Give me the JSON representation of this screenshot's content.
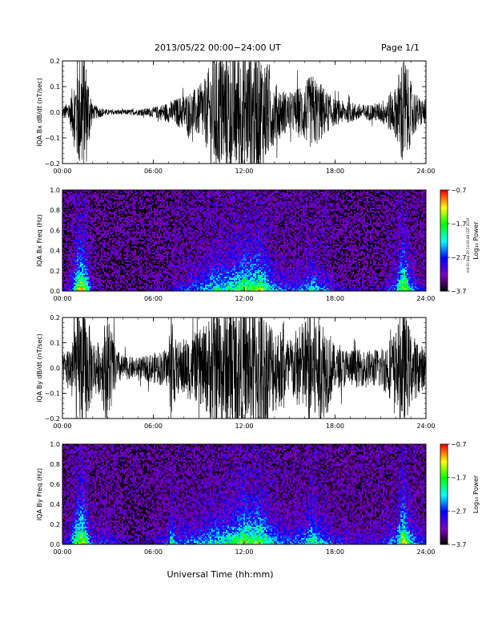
{
  "header": {
    "title": "2013/05/22  00:00−24:00 UT",
    "page": "Page 1/1"
  },
  "side_note": "mit Fri Sep 20 13:03:48 CDT 2019",
  "xlabel": "Universal Time (hh:mm)",
  "colorbar": {
    "label": "Log₁₀ Power",
    "ticks": [
      -0.7,
      -1.7,
      -2.7,
      -3.7
    ],
    "tick_labels": [
      "−0.7",
      "−1.7",
      "−2.7",
      "−3.7"
    ],
    "colors": [
      "#ff0000",
      "#ffff00",
      "#00ff00",
      "#00ffff",
      "#0000ff",
      "#8000c0",
      "#000000"
    ]
  },
  "chart_data": [
    {
      "type": "line",
      "ylabel": "IQA Bx dB/dt (nT/sec)",
      "xlim": [
        0,
        24
      ],
      "ylim": [
        -0.2,
        0.2
      ],
      "x_ticks": [
        "00:00",
        "06:00",
        "12:00",
        "18:00",
        "24:00"
      ],
      "y_ticks": [
        "0.2",
        "0.1",
        "0.0",
        "−0.1",
        "−0.2"
      ],
      "envelope": {
        "t": [
          0,
          0.5,
          1,
          1.3,
          1.6,
          2,
          3,
          4,
          5,
          6,
          7,
          8,
          9,
          9.5,
          10,
          10.5,
          11,
          11.5,
          12,
          12.5,
          13,
          13.5,
          14,
          15,
          16,
          16.5,
          17,
          17.5,
          18,
          19,
          20,
          21,
          22,
          22.5,
          23,
          23.5,
          24
        ],
        "amp": [
          0.02,
          0.05,
          0.22,
          0.25,
          0.2,
          0.03,
          0.01,
          0.01,
          0.012,
          0.02,
          0.04,
          0.07,
          0.1,
          0.14,
          0.25,
          0.25,
          0.25,
          0.25,
          0.25,
          0.25,
          0.25,
          0.2,
          0.12,
          0.07,
          0.12,
          0.15,
          0.12,
          0.08,
          0.05,
          0.04,
          0.03,
          0.04,
          0.1,
          0.25,
          0.12,
          0.06,
          0.05
        ]
      }
    },
    {
      "type": "heatmap",
      "ylabel": "IQA Bx Freq (Hz)",
      "xlim": [
        0,
        24
      ],
      "ylim": [
        0,
        1.0
      ],
      "x_ticks": [
        "00:00",
        "06:00",
        "12:00",
        "18:00",
        "24:00"
      ],
      "y_ticks": [
        "1.0",
        "0.8",
        "0.6",
        "0.4",
        "0.2",
        "0.0"
      ],
      "zlim": [
        -3.7,
        -0.7
      ],
      "activity": {
        "t": [
          0,
          0.5,
          1,
          1.3,
          1.6,
          2,
          3,
          4,
          5,
          6,
          7,
          8,
          9,
          9.5,
          10,
          10.5,
          11,
          11.5,
          12,
          12.5,
          13,
          13.5,
          14,
          15,
          16,
          16.5,
          17,
          17.5,
          18,
          19,
          20,
          21,
          22,
          22.5,
          23,
          23.5,
          24
        ],
        "level": [
          0.1,
          0.25,
          0.85,
          0.95,
          0.7,
          0.15,
          0.05,
          0.05,
          0.05,
          0.1,
          0.15,
          0.3,
          0.4,
          0.5,
          0.6,
          0.6,
          0.65,
          0.7,
          0.8,
          0.75,
          0.85,
          0.65,
          0.45,
          0.3,
          0.4,
          0.55,
          0.45,
          0.35,
          0.2,
          0.15,
          0.12,
          0.15,
          0.4,
          0.95,
          0.5,
          0.25,
          0.2
        ]
      }
    },
    {
      "type": "line",
      "ylabel": "IQA By dB/dt (nT/sec)",
      "xlim": [
        0,
        24
      ],
      "ylim": [
        -0.2,
        0.2
      ],
      "x_ticks": [
        "00:00",
        "06:00",
        "12:00",
        "18:00",
        "24:00"
      ],
      "y_ticks": [
        "0.2",
        "0.1",
        "0.0",
        "−0.1",
        "−0.2"
      ],
      "envelope": {
        "t": [
          0,
          0.5,
          1,
          1.3,
          1.6,
          2,
          2.5,
          3,
          3.5,
          4,
          5,
          6,
          7,
          7.2,
          7.5,
          8,
          9,
          9.5,
          10,
          10.5,
          11,
          11.5,
          12,
          12.5,
          13,
          13.5,
          14,
          15,
          16,
          16.5,
          17,
          17.5,
          18,
          19,
          20,
          21,
          22,
          22.5,
          23,
          23.5,
          24
        ],
        "amp": [
          0.05,
          0.1,
          0.25,
          0.25,
          0.22,
          0.12,
          0.1,
          0.25,
          0.08,
          0.05,
          0.04,
          0.06,
          0.08,
          0.25,
          0.1,
          0.12,
          0.14,
          0.18,
          0.25,
          0.25,
          0.25,
          0.25,
          0.25,
          0.25,
          0.25,
          0.22,
          0.18,
          0.12,
          0.2,
          0.25,
          0.22,
          0.18,
          0.08,
          0.08,
          0.07,
          0.08,
          0.15,
          0.25,
          0.15,
          0.1,
          0.08
        ]
      }
    },
    {
      "type": "heatmap",
      "ylabel": "IQA By Freq (Hz)",
      "xlim": [
        0,
        24
      ],
      "ylim": [
        0,
        1.0
      ],
      "x_ticks": [
        "00:00",
        "06:00",
        "12:00",
        "18:00",
        "24:00"
      ],
      "y_ticks": [
        "1.0",
        "0.8",
        "0.6",
        "0.4",
        "0.2",
        "0.0"
      ],
      "zlim": [
        -3.7,
        -0.7
      ],
      "activity": {
        "t": [
          0,
          0.5,
          1,
          1.3,
          1.6,
          2,
          3,
          4,
          5,
          6,
          7,
          7.2,
          7.5,
          8,
          9,
          9.5,
          10,
          10.5,
          11,
          11.5,
          12,
          12.5,
          13,
          13.5,
          14,
          15,
          16,
          16.5,
          17,
          17.5,
          18,
          19,
          20,
          21,
          22,
          22.5,
          23,
          23.5,
          24
        ],
        "level": [
          0.2,
          0.35,
          0.85,
          0.95,
          0.7,
          0.25,
          0.3,
          0.15,
          0.15,
          0.2,
          0.3,
          0.7,
          0.35,
          0.4,
          0.45,
          0.5,
          0.6,
          0.6,
          0.65,
          0.7,
          0.85,
          0.75,
          0.85,
          0.65,
          0.5,
          0.35,
          0.5,
          0.7,
          0.5,
          0.4,
          0.3,
          0.25,
          0.2,
          0.25,
          0.45,
          0.95,
          0.55,
          0.35,
          0.3
        ]
      }
    }
  ]
}
